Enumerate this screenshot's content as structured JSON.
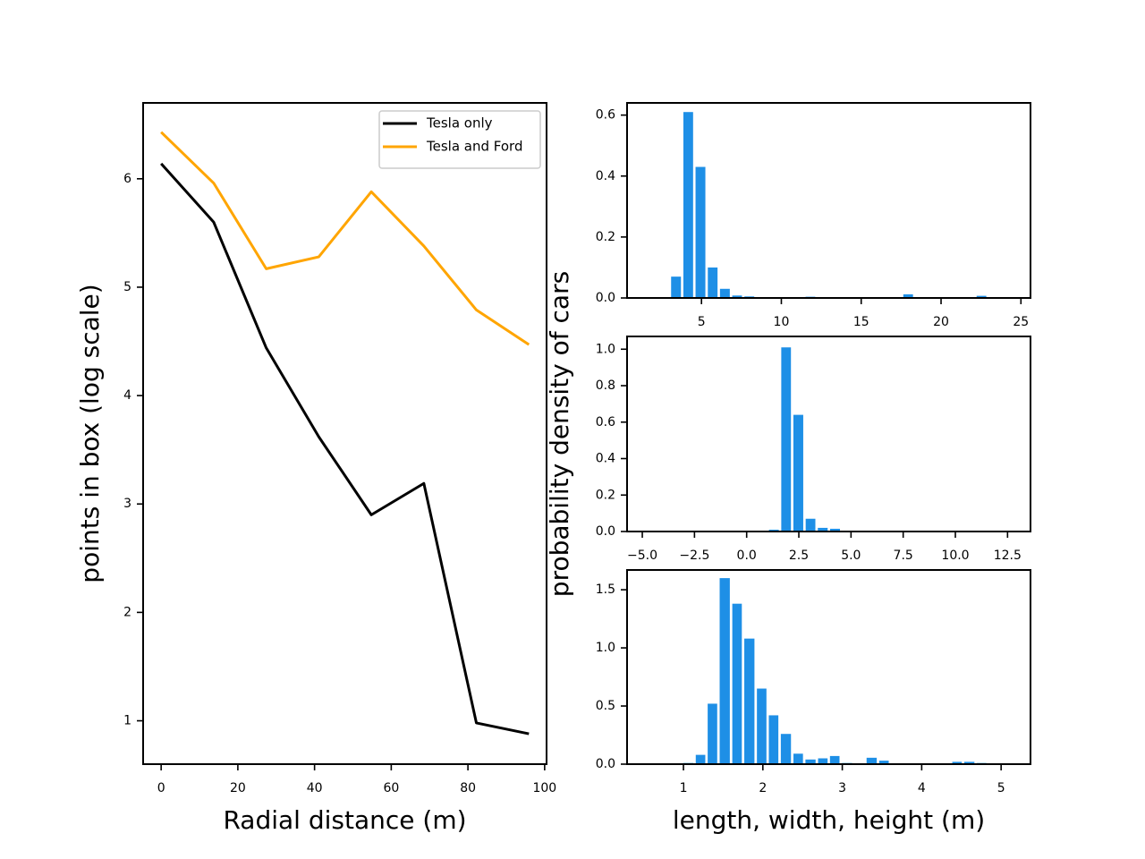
{
  "chart_data": [
    {
      "type": "line",
      "xlabel": "Radial distance (m)",
      "ylabel": "points in box (log scale)",
      "x": [
        0,
        13.7,
        27.4,
        41.1,
        54.8,
        68.5,
        82.2,
        95.9
      ],
      "series": [
        {
          "name": "Tesla only",
          "color": "#000000",
          "values": [
            6.14,
            5.6,
            4.44,
            3.62,
            2.9,
            3.19,
            0.98,
            0.88
          ]
        },
        {
          "name": "Tesla and Ford",
          "color": "#ffa500",
          "values": [
            6.43,
            5.96,
            5.17,
            5.28,
            5.88,
            5.38,
            4.79,
            4.47
          ]
        }
      ],
      "xlim": [
        -4.7,
        100.5
      ],
      "xticks": [
        0,
        20,
        40,
        60,
        80,
        100
      ],
      "ylim": [
        0.6,
        6.7
      ],
      "yticks": [
        1,
        2,
        3,
        4,
        5,
        6
      ],
      "legend": "upper right",
      "grid": false
    },
    {
      "type": "histogram",
      "color": "#1e8fe6",
      "bins": [
        1.49,
        2.26,
        3.02,
        3.79,
        4.55,
        5.32,
        6.08,
        6.85,
        7.61,
        8.38,
        9.14,
        9.91,
        10.67,
        11.44,
        12.2,
        12.97,
        13.73,
        14.5,
        15.26,
        16.03,
        16.79,
        17.56,
        18.32,
        19.09,
        19.85,
        20.62,
        21.38,
        22.15,
        22.91,
        23.68,
        24.44
      ],
      "values": [
        0,
        0,
        0.07,
        0.61,
        0.43,
        0.1,
        0.03,
        0.008,
        0.005,
        0,
        0,
        0,
        0,
        0.004,
        0,
        0,
        0,
        0,
        0,
        0,
        0,
        0.012,
        0,
        0,
        0,
        0,
        0,
        0.007,
        0,
        0
      ],
      "xlim": [
        0.34,
        25.6
      ],
      "xticks": [
        5,
        10,
        15,
        20,
        25
      ],
      "ylim": [
        0,
        0.64
      ],
      "yticks": [
        {
          "value": 0,
          "label": "0.0"
        },
        0.2,
        0.4,
        0.6
      ],
      "grid": false
    },
    {
      "type": "histogram",
      "color": "#1e8fe6",
      "ylabel": "probability density of cars",
      "bins": [
        -4.85,
        -4.26,
        -3.68,
        -3.09,
        -2.51,
        -1.92,
        -1.33,
        -0.75,
        -0.16,
        0.42,
        1.01,
        1.6,
        2.18,
        2.77,
        3.35,
        3.94,
        4.53,
        5.11,
        5.7,
        6.28,
        6.87,
        7.46,
        8.04,
        8.63,
        9.21,
        9.8,
        10.39,
        10.97,
        11.56,
        12.14,
        12.73
      ],
      "values": [
        0,
        0,
        0,
        0,
        0,
        0,
        0,
        0,
        0,
        0,
        0.01,
        1.01,
        0.64,
        0.07,
        0.02,
        0.015,
        0,
        0,
        0,
        0,
        0,
        0,
        0,
        0,
        0,
        0,
        0,
        0,
        0,
        0
      ],
      "xlim": [
        -5.73,
        13.6
      ],
      "xticks": [
        {
          "value": -5,
          "label": "−5.0"
        },
        {
          "value": -2.5,
          "label": "−2.5"
        },
        {
          "value": 0,
          "label": "0.0"
        },
        2.5,
        {
          "value": 5,
          "label": "5.0"
        },
        7.5,
        {
          "value": 10,
          "label": "10.0"
        },
        12.5
      ],
      "ylim": [
        0,
        1.07
      ],
      "yticks": [
        {
          "value": 0,
          "label": "0.0"
        },
        0.2,
        0.4,
        0.6,
        0.8,
        {
          "value": 1,
          "label": "1.0"
        }
      ],
      "grid": false
    },
    {
      "type": "histogram",
      "color": "#1e8fe6",
      "xlabel": "length, width, height (m)",
      "bins": [
        0.52,
        0.67,
        0.83,
        0.98,
        1.14,
        1.29,
        1.44,
        1.6,
        1.75,
        1.91,
        2.06,
        2.21,
        2.37,
        2.52,
        2.68,
        2.83,
        2.98,
        3.14,
        3.29,
        3.45,
        3.6,
        3.75,
        3.91,
        4.06,
        4.22,
        4.37,
        4.52,
        4.68,
        4.83,
        4.99,
        5.14
      ],
      "values": [
        0,
        0,
        0,
        0.01,
        0.08,
        0.52,
        1.6,
        1.38,
        1.08,
        0.65,
        0.42,
        0.26,
        0.09,
        0.04,
        0.05,
        0.07,
        0.01,
        0,
        0.055,
        0.03,
        0,
        0,
        0,
        0,
        0,
        0.02,
        0.02,
        0.01,
        0,
        0
      ],
      "xlim": [
        0.29,
        5.37
      ],
      "xticks": [
        1,
        2,
        3,
        4,
        5
      ],
      "ylim": [
        0,
        1.67
      ],
      "yticks": [
        {
          "value": 0,
          "label": "0.0"
        },
        0.5,
        {
          "value": 1,
          "label": "1.0"
        },
        1.5
      ],
      "grid": false
    }
  ]
}
